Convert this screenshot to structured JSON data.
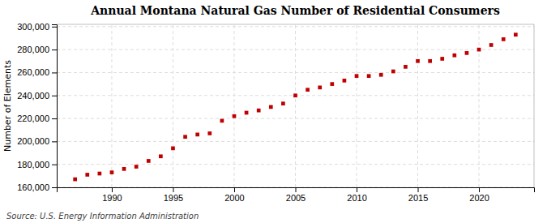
{
  "chart_data": {
    "type": "scatter",
    "title": "Annual Montana Natural Gas Number of Residential Consumers",
    "ylabel": "Number of Elements",
    "annotations": [
      "Source: U.S. Energy Information Administration"
    ],
    "color": "#c00000",
    "marker": "square",
    "grid": true,
    "xlim": [
      1985.5,
      2024.5
    ],
    "ylim": [
      160000,
      302000
    ],
    "xticks": [
      1990,
      1995,
      2000,
      2005,
      2010,
      2015,
      2020
    ],
    "yticks": [
      {
        "value": 160000,
        "label": "160,000"
      },
      {
        "value": 180000,
        "label": "180,000"
      },
      {
        "value": 200000,
        "label": "200,000"
      },
      {
        "value": 220000,
        "label": "220,000"
      },
      {
        "value": 240000,
        "label": "240,000"
      },
      {
        "value": 260000,
        "label": "260,000"
      },
      {
        "value": 280000,
        "label": "280,000"
      },
      {
        "value": 300000,
        "label": "300,000"
      }
    ],
    "x": [
      1987,
      1988,
      1989,
      1990,
      1991,
      1992,
      1993,
      1994,
      1995,
      1996,
      1997,
      1998,
      1999,
      2000,
      2001,
      2002,
      2003,
      2004,
      2005,
      2006,
      2007,
      2008,
      2009,
      2010,
      2011,
      2012,
      2013,
      2014,
      2015,
      2016,
      2017,
      2018,
      2019,
      2020,
      2021,
      2022,
      2023
    ],
    "values": [
      167000,
      171000,
      172000,
      173000,
      176000,
      178000,
      183000,
      187000,
      194000,
      204000,
      206000,
      207000,
      218000,
      222000,
      225000,
      227000,
      230000,
      233000,
      240000,
      245000,
      247000,
      250000,
      253000,
      257000,
      257000,
      258000,
      261000,
      265000,
      270000,
      270000,
      272000,
      275000,
      277000,
      280000,
      284000,
      289000,
      293000
    ]
  }
}
